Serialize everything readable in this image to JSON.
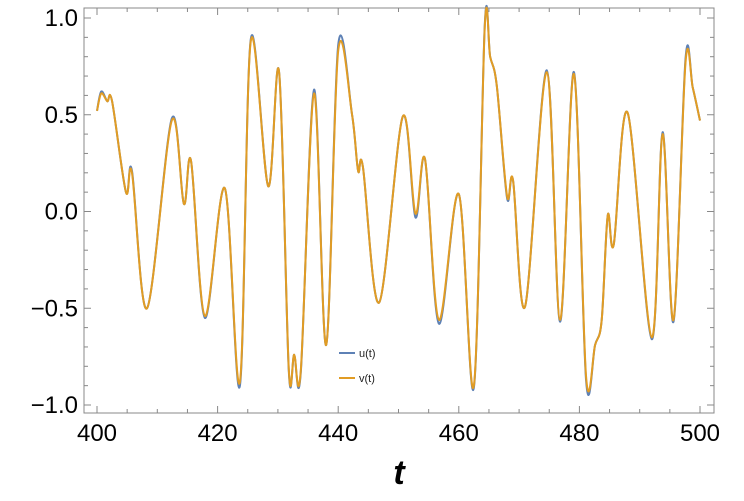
{
  "chart_data": {
    "type": "line",
    "title": "",
    "xlabel": "t",
    "ylabel": "",
    "xlim": [
      398,
      502
    ],
    "ylim": [
      -1.05,
      1.05
    ],
    "x_ticks": [
      400,
      420,
      440,
      460,
      480,
      500
    ],
    "x_tick_labels": [
      "400",
      "420",
      "440",
      "460",
      "480",
      "500"
    ],
    "y_ticks": [
      -1.0,
      -0.5,
      0.0,
      0.5,
      1.0
    ],
    "y_tick_labels": [
      "−1.0",
      "−0.5",
      "0.0",
      "0.5",
      "1.0"
    ],
    "grid": false,
    "legend_placement": "bottom-center",
    "t": [
      400,
      400.7,
      401.7,
      402.5,
      404.8,
      405.8,
      408.3,
      412.4,
      414.4,
      415.6,
      417.9,
      421.2,
      423.7,
      425.5,
      428.4,
      430.2,
      431.8,
      432.7,
      433.8,
      436.0,
      438.0,
      440.0,
      442.3,
      443.3,
      444.1,
      446.8,
      450.7,
      452.8,
      454.4,
      456.7,
      460.0,
      462.5,
      464.3,
      465.2,
      466.3,
      468.0,
      469.0,
      471.0,
      474.6,
      476.8,
      479.1,
      481.1,
      482.6,
      483.7,
      484.7,
      485.7,
      488.0,
      492.0,
      493.8,
      495.6,
      497.6,
      498.8,
      500
    ],
    "series": [
      {
        "name": "u(t)",
        "color": "#5E81B5",
        "values": [
          0.52,
          0.62,
          0.57,
          0.57,
          0.1,
          0.21,
          -0.5,
          0.48,
          0.04,
          0.26,
          -0.55,
          0.12,
          -0.9,
          0.89,
          0.13,
          0.72,
          -0.82,
          -0.74,
          -0.83,
          0.63,
          -0.69,
          0.86,
          0.5,
          0.21,
          0.23,
          -0.47,
          0.49,
          -0.03,
          0.27,
          -0.58,
          0.09,
          -0.91,
          0.96,
          0.8,
          0.65,
          0.07,
          0.16,
          -0.49,
          0.73,
          -0.57,
          0.72,
          -0.87,
          -0.69,
          -0.56,
          -0.02,
          -0.17,
          0.51,
          -0.66,
          0.41,
          -0.57,
          0.79,
          0.64,
          0.47
        ]
      },
      {
        "name": "v(t)",
        "color": "#E19C24",
        "values": [
          0.52,
          0.61,
          0.57,
          0.57,
          0.1,
          0.2,
          -0.5,
          0.47,
          0.04,
          0.26,
          -0.54,
          0.12,
          -0.88,
          0.88,
          0.13,
          0.72,
          -0.81,
          -0.74,
          -0.82,
          0.61,
          -0.69,
          0.83,
          0.5,
          0.21,
          0.23,
          -0.47,
          0.49,
          -0.01,
          0.27,
          -0.56,
          0.09,
          -0.9,
          0.95,
          0.8,
          0.65,
          0.08,
          0.16,
          -0.49,
          0.72,
          -0.56,
          0.71,
          -0.85,
          -0.69,
          -0.56,
          -0.02,
          -0.17,
          0.51,
          -0.65,
          0.4,
          -0.56,
          0.77,
          0.64,
          0.47
        ]
      }
    ]
  }
}
